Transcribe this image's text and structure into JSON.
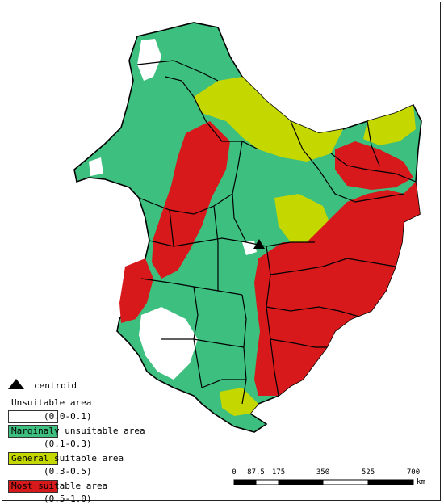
{
  "legend": {
    "centroid_label": "centroid",
    "items": [
      {
        "label": "Unsuitable area",
        "range": "(0.0-0.1)",
        "color": "#ffffff"
      },
      {
        "label": "Marginaly unsuitable area",
        "range": "(0.1-0.3)",
        "color": "#3dbf7f"
      },
      {
        "label": "General suitable area",
        "range": "(0.3-0.5)",
        "color": "#c4d800"
      },
      {
        "label": "Most suitable area",
        "range": "(0.5-1.0)",
        "color": "#d7191c"
      }
    ]
  },
  "scale_bar": {
    "ticks": [
      "0",
      "87.5",
      "175",
      "350",
      "525",
      "700"
    ],
    "unit": "km"
  },
  "colors": {
    "boundary": "#000000",
    "centroid": "#000000"
  }
}
